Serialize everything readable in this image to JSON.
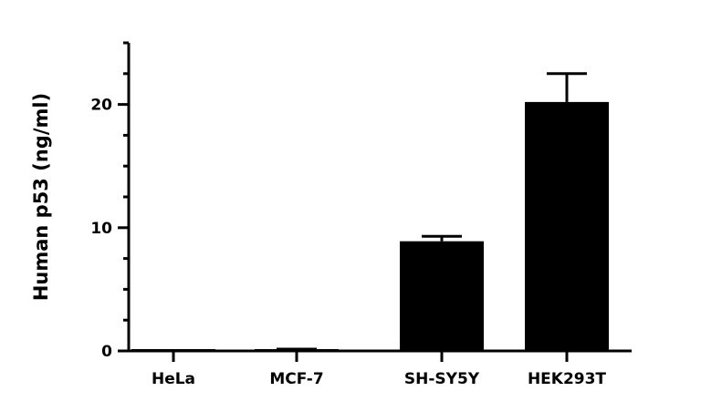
{
  "chart_data": {
    "type": "bar",
    "ylabel": "Human p53 (ng/ml)",
    "xlabel": "",
    "categories": [
      "HeLa",
      "MCF-7",
      "SH-SY5Y",
      "HEK293T"
    ],
    "values": [
      0.05,
      0.1,
      8.9,
      20.2
    ],
    "errors": [
      0,
      0.05,
      0.4,
      2.3
    ],
    "ylim": [
      0,
      25
    ],
    "yticks": [
      0,
      10,
      20
    ],
    "grid": false,
    "colors": {
      "bar": "#000000",
      "axis": "#000000"
    }
  }
}
